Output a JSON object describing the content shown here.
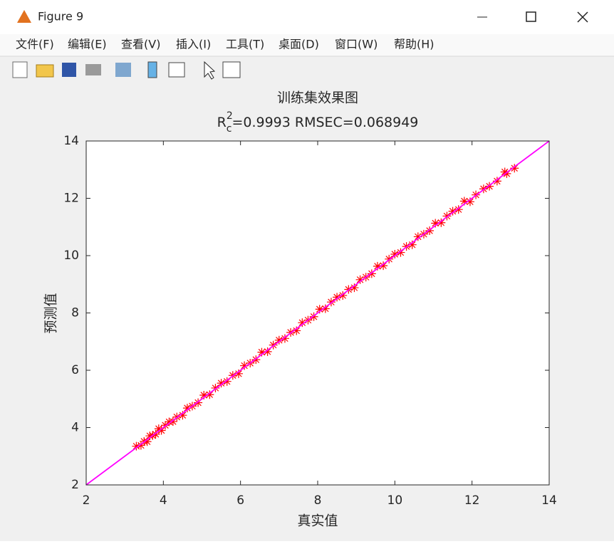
{
  "window": {
    "title": "Figure 9",
    "menu": [
      "文件(F)",
      "编辑(E)",
      "查看(V)",
      "插入(I)",
      "工具(T)",
      "桌面(D)",
      "窗口(W)",
      "帮助(H)"
    ]
  },
  "chart_data": {
    "type": "scatter",
    "title": "训练集效果图",
    "subtitle": {
      "base": "R",
      "sup": "2",
      "sub": "c",
      "rest": "=0.9993  RMSEC=0.068949"
    },
    "x_label": "真实值",
    "y_label": "预测值",
    "xlim": [
      2,
      14
    ],
    "ylim": [
      2,
      14
    ],
    "xticks": [
      2,
      4,
      6,
      8,
      10,
      12,
      14
    ],
    "yticks": [
      2,
      4,
      6,
      8,
      10,
      12,
      14
    ],
    "series": [
      {
        "color": "#ff0000",
        "marker": "*",
        "x": [
          3.3,
          3.42,
          3.5,
          3.58,
          3.65,
          3.72,
          3.8,
          3.88,
          3.95,
          4.05,
          4.15,
          4.25,
          4.35,
          4.5,
          4.62,
          4.75,
          4.9,
          5.05,
          5.2,
          5.35,
          5.5,
          5.65,
          5.8,
          5.95,
          6.1,
          6.25,
          6.4,
          6.55,
          6.7,
          6.85,
          7.0,
          7.15,
          7.3,
          7.45,
          7.6,
          7.75,
          7.9,
          8.05,
          8.2,
          8.35,
          8.5,
          8.65,
          8.8,
          8.95,
          9.1,
          9.25,
          9.4,
          9.55,
          9.7,
          9.85,
          10.0,
          10.15,
          10.3,
          10.45,
          10.6,
          10.75,
          10.9,
          11.05,
          11.2,
          11.35,
          11.5,
          11.65,
          11.8,
          11.95,
          12.1,
          12.3,
          12.45,
          12.65,
          12.85,
          12.9,
          13.1
        ],
        "values": [
          3.35,
          3.38,
          3.52,
          3.51,
          3.71,
          3.72,
          3.77,
          3.96,
          3.9,
          4.08,
          4.2,
          4.21,
          4.37,
          4.43,
          4.68,
          4.75,
          4.87,
          5.13,
          5.15,
          5.38,
          5.55,
          5.61,
          5.82,
          5.88,
          6.16,
          6.25,
          6.37,
          6.63,
          6.65,
          6.88,
          7.05,
          7.11,
          7.32,
          7.38,
          7.66,
          7.75,
          7.87,
          8.13,
          8.15,
          8.38,
          8.55,
          8.61,
          8.82,
          8.88,
          9.16,
          9.25,
          9.37,
          9.63,
          9.65,
          9.88,
          10.05,
          10.11,
          10.32,
          10.38,
          10.66,
          10.75,
          10.87,
          11.13,
          11.15,
          11.38,
          11.55,
          11.61,
          11.9,
          11.88,
          12.12,
          12.33,
          12.42,
          12.6,
          12.92,
          12.86,
          13.05
        ]
      }
    ],
    "reference_line": {
      "x": [
        2,
        14
      ],
      "values": [
        2,
        14
      ],
      "color": "#ff00ff"
    }
  }
}
